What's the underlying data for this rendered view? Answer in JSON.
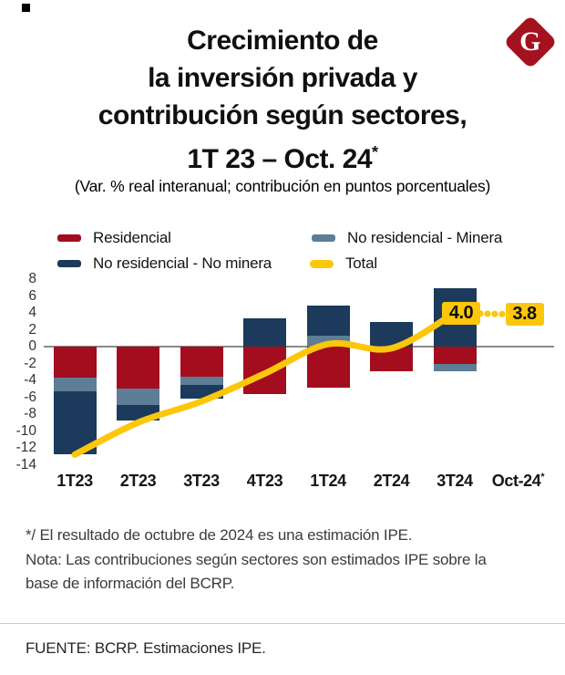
{
  "corner_mark": true,
  "logo": {
    "letter": "G",
    "background_color": "#A4121F"
  },
  "header": {
    "title_lines": [
      "Crecimiento de",
      "la inversión privada y",
      "contribución según sectores,",
      "1T 23 – Oct. 24"
    ],
    "title_superscript": "*",
    "subtitle": "(Var. % real interanual; contribución en puntos porcentuales)"
  },
  "legend": {
    "items": [
      {
        "label": "Residencial",
        "color": "#A30D1E",
        "swatch": "bar"
      },
      {
        "label": "No residencial - Minera",
        "color": "#5E7D96",
        "swatch": "bar"
      },
      {
        "label": "No residencial - No minera",
        "color": "#1C3A5B",
        "swatch": "bar"
      },
      {
        "label": "Total",
        "color": "#FCC70B",
        "swatch": "line"
      }
    ]
  },
  "chart_data": {
    "type": "bar",
    "subtype": "stacked-bars-with-line-overlay",
    "categories": [
      "1T23",
      "2T23",
      "3T23",
      "4T23",
      "1T24",
      "2T24",
      "3T24",
      "Oct-24*"
    ],
    "series": [
      {
        "name": "Residencial",
        "type": "bar",
        "color": "#A30D1E",
        "values": [
          -3.7,
          -5.0,
          -3.6,
          -5.6,
          -4.9,
          -2.9,
          -2.0,
          null
        ]
      },
      {
        "name": "No residencial - Minera",
        "type": "bar",
        "color": "#5E7D96",
        "values": [
          -1.6,
          -1.9,
          -0.9,
          0,
          1.3,
          0,
          -0.9,
          null
        ]
      },
      {
        "name": "No residencial - No minera",
        "type": "bar",
        "color": "#1C3A5B",
        "values": [
          -7.5,
          -1.9,
          -1.7,
          3.3,
          3.6,
          2.9,
          6.9,
          null
        ]
      },
      {
        "name": "Total",
        "type": "line",
        "color": "#FCC70B",
        "values": [
          -12.8,
          -9.0,
          -6.5,
          -3.2,
          0.3,
          -0.2,
          4.0,
          3.8
        ],
        "dotted_from_index": 6
      }
    ],
    "ylim": [
      -14,
      8
    ],
    "yticks": [
      8,
      6,
      4,
      2,
      0,
      -2,
      -4,
      -6,
      -8,
      -10,
      -12,
      -14
    ],
    "grid": "zero-line-only",
    "legend_position": "top",
    "annotations": [
      {
        "category": "3T24",
        "text": "4.0",
        "box_color": "#FCC70B"
      },
      {
        "category": "Oct-24*",
        "text": "3.8",
        "box_color": "#FCC70B"
      }
    ]
  },
  "footnotes": {
    "lines": [
      "*/ El resultado de octubre de 2024 es una estimación IPE.",
      "Nota: Las contribuciones según sectores son estimados IPE sobre la",
      "base de información del BCRP."
    ]
  },
  "source": {
    "text": "FUENTE: BCRP. Estimaciones IPE."
  }
}
